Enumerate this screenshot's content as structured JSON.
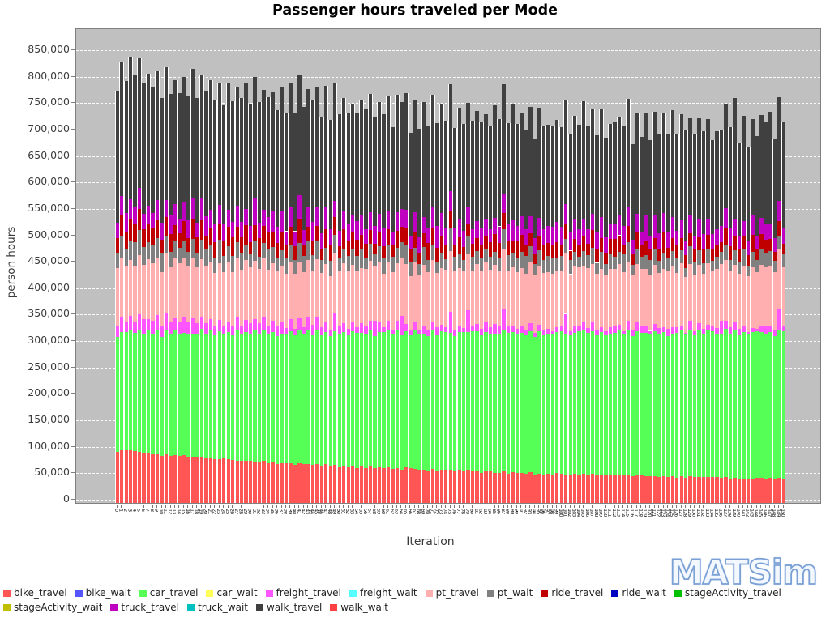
{
  "title": "Passenger hours traveled per Mode",
  "watermark": "MATSim",
  "axes": {
    "y_label": "person hours",
    "x_label": "Iteration",
    "y_ticks": [
      "850,000",
      "800,000",
      "750,000",
      "700,000",
      "650,000",
      "600,000",
      "550,000",
      "500,000",
      "450,000",
      "400,000",
      "350,000",
      "300,000",
      "250,000",
      "200,000",
      "150,000",
      "100,000",
      "50,000",
      "0"
    ],
    "x_tick_range": {
      "from": 0,
      "to": 150,
      "step": 1
    }
  },
  "colors": {
    "plot_background": "#C0C0C0",
    "gridline": "#FFFFFF",
    "axis_text": "#3b3b3b",
    "watermark_outline": "#7aa0d6"
  },
  "legend": {
    "rows": [
      [
        {
          "label": "bike_travel",
          "color": "#FF5555"
        },
        {
          "label": "bike_wait",
          "color": "#5555FF"
        },
        {
          "label": "car_travel",
          "color": "#55FF55"
        },
        {
          "label": "car_wait",
          "color": "#FFFF55"
        },
        {
          "label": "freight_travel",
          "color": "#FF55FF"
        },
        {
          "label": "freight_wait",
          "color": "#55FFFF"
        },
        {
          "label": "pt_travel",
          "color": "#FFAFAF"
        },
        {
          "label": "pt_wait",
          "color": "#808080"
        },
        {
          "label": "ride_travel",
          "color": "#C00000"
        },
        {
          "label": "ride_wait",
          "color": "#0000C0"
        },
        {
          "label": "stageActivity_travel",
          "color": "#00C000"
        }
      ],
      [
        {
          "label": "stageActivity_wait",
          "color": "#C0C000"
        },
        {
          "label": "truck_travel",
          "color": "#C000C0"
        },
        {
          "label": "truck_wait",
          "color": "#00C0C0"
        },
        {
          "label": "walk_travel",
          "color": "#404040"
        },
        {
          "label": "walk_wait",
          "color": "#FF4040"
        }
      ]
    ]
  },
  "chart_data": {
    "type": "bar",
    "variant": "stacked",
    "title": "Passenger hours traveled per Mode",
    "xlabel": "Iteration",
    "ylabel": "person hours",
    "ylim": [
      0,
      880000
    ],
    "grid": "horizontal-dashed-white",
    "legend_position": "bottom-left",
    "x_categories": "iterations 0 through 150, one stacked bar each",
    "note": "values in thousands of person hours; keyframes sampled every 10 iterations (bars too dense to read individually); per-bar random-looking jitter present in original",
    "keyframe_iterations": [
      0,
      10,
      20,
      30,
      40,
      50,
      60,
      70,
      80,
      90,
      100,
      110,
      120,
      130,
      140,
      150
    ],
    "series": [
      {
        "name": "bike_travel",
        "color": "#FF5555",
        "keyframes_k": [
          100,
          92,
          85,
          79,
          74,
          70,
          66,
          63,
          60,
          57,
          55,
          53,
          51,
          49,
          47,
          45
        ],
        "jitter_k": 2,
        "spike_k": 0
      },
      {
        "name": "bike_wait",
        "color": "#5555FF",
        "keyframes_k": [
          0,
          0,
          0,
          0,
          0,
          0,
          0,
          0,
          0,
          0,
          0,
          0,
          0,
          0,
          0,
          0
        ],
        "jitter_k": 0,
        "spike_k": 0
      },
      {
        "name": "car_travel",
        "color": "#55FF55",
        "keyframes_k": [
          222,
          230,
          237,
          243,
          248,
          252,
          256,
          259,
          262,
          265,
          267,
          269,
          271,
          273,
          275,
          277
        ],
        "jitter_k": 4,
        "spike_k": 0
      },
      {
        "name": "car_wait",
        "color": "#FFFF55",
        "keyframes_k": [
          0,
          0,
          0,
          0,
          0,
          0,
          0,
          0,
          0,
          0,
          0,
          0,
          0,
          0,
          0,
          0
        ],
        "jitter_k": 0,
        "spike_k": 0
      },
      {
        "name": "freight_travel",
        "color": "#FF55FF",
        "keyframes_k": [
          26,
          24,
          22,
          20,
          18,
          16,
          15,
          14,
          13,
          13,
          12,
          12,
          12,
          11,
          11,
          13
        ],
        "jitter_k": 5,
        "spike_k": 22
      },
      {
        "name": "freight_wait",
        "color": "#55FFFF",
        "keyframes_k": [
          0,
          0,
          0,
          0,
          0,
          0,
          0,
          0,
          0,
          0,
          0,
          0,
          0,
          0,
          0,
          0
        ],
        "jitter_k": 0,
        "spike_k": 0
      },
      {
        "name": "pt_travel",
        "color": "#FFAFAF",
        "keyframes_k": [
          107,
          107,
          108,
          108,
          108,
          108,
          108,
          109,
          109,
          109,
          109,
          110,
          110,
          110,
          110,
          110
        ],
        "jitter_k": 5,
        "spike_k": 0
      },
      {
        "name": "pt_wait",
        "color": "#808080",
        "keyframes_k": [
          35,
          33,
          32,
          31,
          30,
          29,
          28,
          28,
          27,
          27,
          26,
          26,
          26,
          25,
          25,
          25
        ],
        "jitter_k": 6,
        "spike_k": 8
      },
      {
        "name": "ride_travel",
        "color": "#C00000",
        "keyframes_k": [
          35,
          33,
          32,
          31,
          30,
          29,
          28,
          28,
          27,
          27,
          26,
          26,
          25,
          25,
          25,
          25
        ],
        "jitter_k": 6,
        "spike_k": 8
      },
      {
        "name": "ride_wait",
        "color": "#0000C0",
        "keyframes_k": [
          0,
          0,
          0,
          0,
          0,
          0,
          0,
          0,
          0,
          0,
          0,
          0,
          0,
          0,
          0,
          0
        ],
        "jitter_k": 0,
        "spike_k": 0
      },
      {
        "name": "stageActivity_travel",
        "color": "#00C000",
        "keyframes_k": [
          0,
          0,
          0,
          0,
          0,
          0,
          0,
          0,
          0,
          0,
          0,
          0,
          0,
          0,
          0,
          0
        ],
        "jitter_k": 0,
        "spike_k": 0
      },
      {
        "name": "stageActivity_wait",
        "color": "#C0C000",
        "keyframes_k": [
          0,
          0,
          0,
          0,
          0,
          0,
          0,
          0,
          0,
          0,
          0,
          0,
          0,
          0,
          0,
          0
        ],
        "jitter_k": 0,
        "spike_k": 0
      },
      {
        "name": "truck_travel",
        "color": "#C000C0",
        "keyframes_k": [
          35,
          34,
          34,
          33,
          33,
          33,
          32,
          32,
          32,
          32,
          32,
          32,
          32,
          32,
          32,
          32
        ],
        "jitter_k": 6,
        "spike_k": 10
      },
      {
        "name": "truck_wait",
        "color": "#00C0C0",
        "keyframes_k": [
          0,
          0,
          0,
          0,
          0,
          0,
          0,
          0,
          0,
          0,
          0,
          0,
          0,
          0,
          0,
          0
        ],
        "jitter_k": 0,
        "spike_k": 0
      },
      {
        "name": "walk_travel",
        "color": "#404040",
        "keyframes_k": [
          250,
          242,
          235,
          228,
          222,
          216,
          211,
          206,
          202,
          198,
          195,
          192,
          190,
          189,
          188,
          188
        ],
        "jitter_k": 10,
        "spike_k": 28
      },
      {
        "name": "walk_wait",
        "color": "#FF4040",
        "keyframes_k": [
          0,
          0,
          0,
          0,
          0,
          0,
          0,
          0,
          0,
          0,
          0,
          0,
          0,
          0,
          0,
          0
        ],
        "jitter_k": 0,
        "spike_k": 0
      }
    ],
    "stack_totals_k_approx": {
      "iteration_0": 810,
      "iteration_150": 715
    }
  }
}
